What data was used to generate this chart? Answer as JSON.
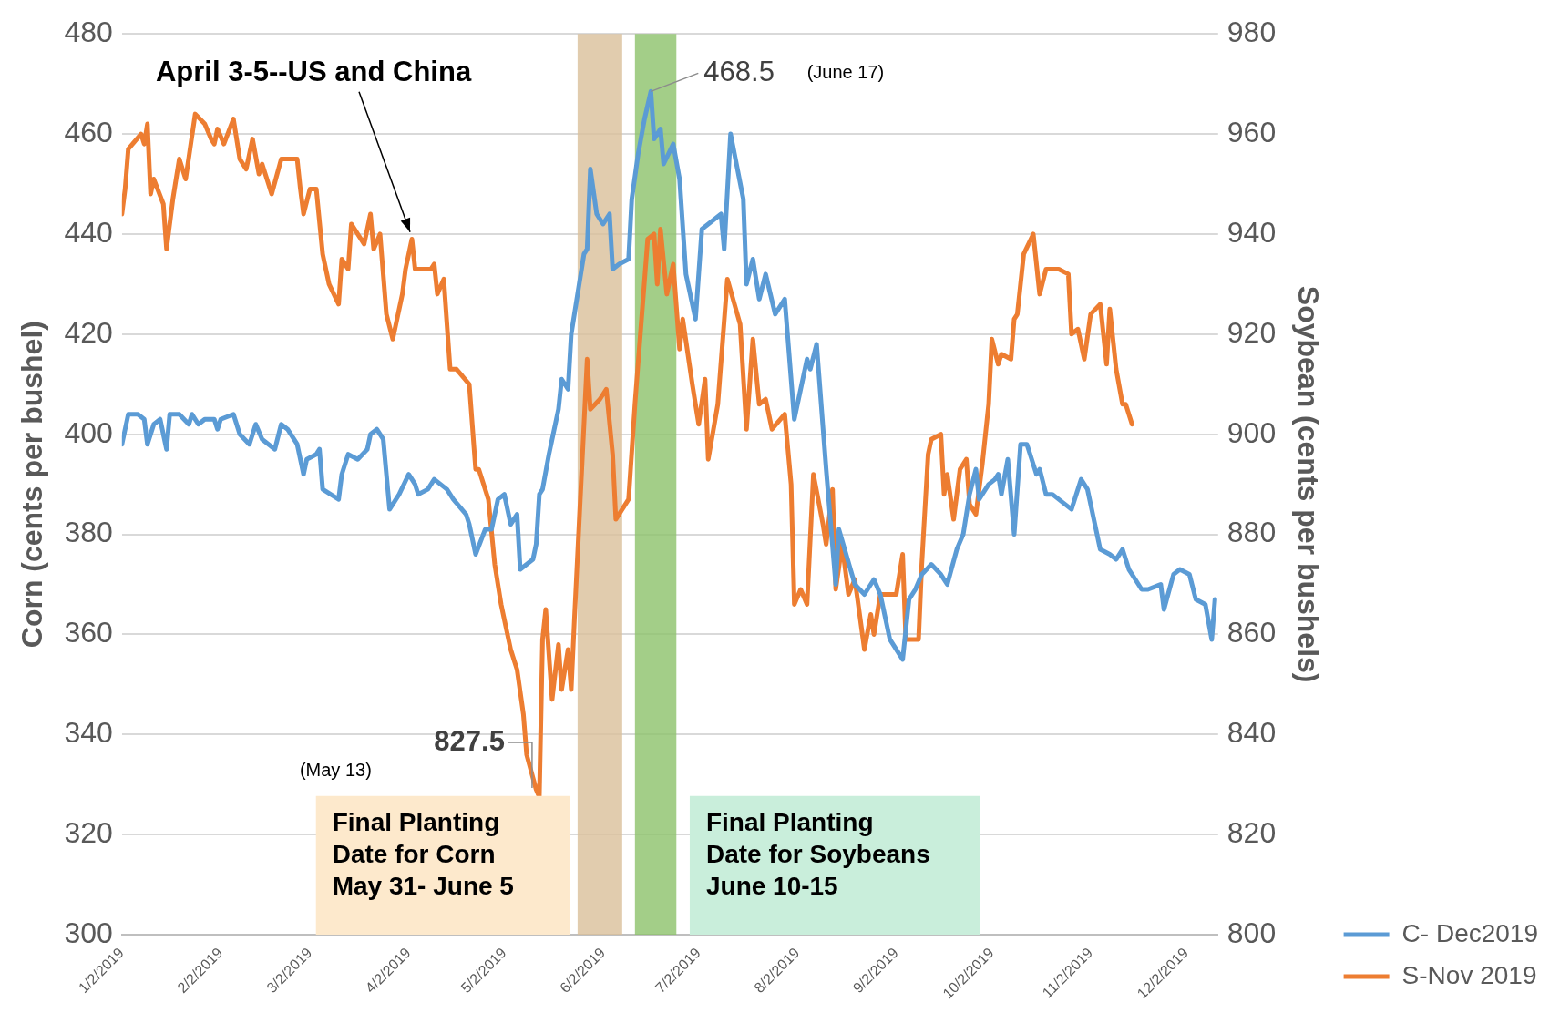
{
  "chart_data": {
    "type": "line",
    "ylabel": "Corn (cents per bushel)",
    "y2label": "Soybean (cents per bushels)",
    "xlim": [
      "2019-01-02",
      "2019-12-12"
    ],
    "xticks": [
      {
        "value": "2019-01-02",
        "label": "1/2/2019"
      },
      {
        "value": "2019-02-02",
        "label": "2/2/2019"
      },
      {
        "value": "2019-03-02",
        "label": "3/2/2019"
      },
      {
        "value": "2019-04-02",
        "label": "4/2/2019"
      },
      {
        "value": "2019-05-02",
        "label": "5/2/2019"
      },
      {
        "value": "2019-06-02",
        "label": "6/2/2019"
      },
      {
        "value": "2019-07-02",
        "label": "7/2/2019"
      },
      {
        "value": "2019-08-02",
        "label": "8/2/2019"
      },
      {
        "value": "2019-09-02",
        "label": "9/2/2019"
      },
      {
        "value": "2019-10-02",
        "label": "10/2/2019"
      },
      {
        "value": "2019-11-02",
        "label": "11/2/2019"
      },
      {
        "value": "2019-12-02",
        "label": "12/2/2019"
      }
    ],
    "ylim": [
      300,
      480
    ],
    "yticks": [
      300,
      320,
      340,
      360,
      380,
      400,
      420,
      440,
      460,
      480
    ],
    "y2lim": [
      800,
      980
    ],
    "y2ticks": [
      800,
      820,
      840,
      860,
      880,
      900,
      920,
      940,
      960,
      980
    ],
    "grid": "y",
    "legend": "right",
    "marker": "none",
    "line_style": "solid",
    "series": [
      {
        "name": "C- Dec2019",
        "color": "#5b9bd5",
        "x": [
          "2019-01-02",
          "2019-01-04",
          "2019-01-07",
          "2019-01-09",
          "2019-01-10",
          "2019-01-12",
          "2019-01-14",
          "2019-01-16",
          "2019-01-17",
          "2019-01-20",
          "2019-01-23",
          "2019-01-24",
          "2019-01-26",
          "2019-01-28",
          "2019-01-31",
          "2019-02-01",
          "2019-02-02",
          "2019-02-06",
          "2019-02-08",
          "2019-02-11",
          "2019-02-13",
          "2019-02-15",
          "2019-02-19",
          "2019-02-21",
          "2019-02-23",
          "2019-02-26",
          "2019-02-28",
          "2019-03-01",
          "2019-03-04",
          "2019-03-05",
          "2019-03-06",
          "2019-03-11",
          "2019-03-12",
          "2019-03-14",
          "2019-03-17",
          "2019-03-20",
          "2019-03-21",
          "2019-03-23",
          "2019-03-25",
          "2019-03-27",
          "2019-03-30",
          "2019-04-02",
          "2019-04-04",
          "2019-04-05",
          "2019-04-08",
          "2019-04-10",
          "2019-04-12",
          "2019-04-14",
          "2019-04-16",
          "2019-04-20",
          "2019-04-21",
          "2019-04-23",
          "2019-04-26",
          "2019-04-28",
          "2019-04-30",
          "2019-05-02",
          "2019-05-04",
          "2019-05-06",
          "2019-05-07",
          "2019-05-11",
          "2019-05-12",
          "2019-05-13",
          "2019-05-14",
          "2019-05-16",
          "2019-05-19",
          "2019-05-20",
          "2019-05-22",
          "2019-05-23",
          "2019-05-27",
          "2019-05-28",
          "2019-05-29",
          "2019-05-31",
          "2019-06-02",
          "2019-06-04",
          "2019-06-05",
          "2019-06-07",
          "2019-06-10",
          "2019-06-11",
          "2019-06-13",
          "2019-06-15",
          "2019-06-17",
          "2019-06-18",
          "2019-06-20",
          "2019-06-21",
          "2019-06-24",
          "2019-06-26",
          "2019-06-28",
          "2019-07-01",
          "2019-07-03",
          "2019-07-09",
          "2019-07-10",
          "2019-07-12",
          "2019-07-16",
          "2019-07-17",
          "2019-07-19",
          "2019-07-21",
          "2019-07-23",
          "2019-07-26",
          "2019-07-29",
          "2019-08-01",
          "2019-08-05",
          "2019-08-06",
          "2019-08-08",
          "2019-08-11",
          "2019-08-14",
          "2019-08-15",
          "2019-08-20",
          "2019-08-23",
          "2019-08-26",
          "2019-08-28",
          "2019-08-31",
          "2019-09-04",
          "2019-09-06",
          "2019-09-08",
          "2019-09-10",
          "2019-09-13",
          "2019-09-16",
          "2019-09-18",
          "2019-09-21",
          "2019-09-23",
          "2019-09-25",
          "2019-09-27",
          "2019-09-28",
          "2019-10-01",
          "2019-10-03",
          "2019-10-04",
          "2019-10-05",
          "2019-10-07",
          "2019-10-09",
          "2019-10-11",
          "2019-10-13",
          "2019-10-16",
          "2019-10-17",
          "2019-10-19",
          "2019-10-21",
          "2019-10-25",
          "2019-10-27",
          "2019-10-30",
          "2019-11-01",
          "2019-11-05",
          "2019-11-08",
          "2019-11-10",
          "2019-11-12",
          "2019-11-14",
          "2019-11-16",
          "2019-11-18",
          "2019-11-20",
          "2019-11-24",
          "2019-11-25",
          "2019-11-28",
          "2019-11-30",
          "2019-12-03",
          "2019-12-05",
          "2019-12-08",
          "2019-12-10",
          "2019-12-11"
        ],
        "values": [
          398,
          404,
          404,
          403,
          398,
          402,
          403,
          397,
          404,
          404,
          402,
          404,
          402,
          403,
          403,
          401,
          403,
          404,
          400,
          398,
          402,
          399,
          397,
          402,
          401,
          398,
          392,
          395,
          396,
          397,
          389,
          387,
          392,
          396,
          395,
          397,
          400,
          401,
          399,
          385,
          388,
          392,
          390,
          388,
          389,
          391,
          390,
          389,
          387,
          384,
          382,
          376,
          381,
          381,
          387,
          388,
          382,
          384,
          373,
          375,
          378,
          388,
          389,
          396,
          405,
          411,
          409,
          420,
          436,
          437,
          453,
          444,
          442,
          444,
          433,
          434,
          435,
          447,
          456,
          463,
          468.5,
          459,
          461,
          454,
          458,
          451,
          432,
          423,
          441,
          444,
          437,
          460,
          447,
          430,
          435,
          427,
          432,
          424,
          427,
          403,
          415,
          413,
          418,
          393,
          370,
          381,
          370,
          368,
          371,
          368,
          359,
          355,
          367,
          369,
          372,
          374,
          372,
          370,
          377,
          380,
          388,
          393,
          387,
          390,
          391,
          392,
          388,
          395,
          380,
          398,
          398,
          392,
          393,
          388,
          388,
          386,
          385,
          391,
          389,
          377,
          376,
          375,
          377,
          373,
          371,
          369,
          369,
          370,
          365,
          372,
          373,
          372,
          367,
          366,
          359,
          367
        ]
      },
      {
        "name": "S-Nov 2019",
        "color": "#ed7d31",
        "axis": "y2",
        "x": [
          "2019-01-02",
          "2019-01-03",
          "2019-01-04",
          "2019-01-08",
          "2019-01-09",
          "2019-01-10",
          "2019-01-11",
          "2019-01-12",
          "2019-01-15",
          "2019-01-16",
          "2019-01-18",
          "2019-01-20",
          "2019-01-22",
          "2019-01-25",
          "2019-01-28",
          "2019-01-30",
          "2019-01-31",
          "2019-02-01",
          "2019-02-03",
          "2019-02-06",
          "2019-02-08",
          "2019-02-10",
          "2019-02-12",
          "2019-02-14",
          "2019-02-15",
          "2019-02-18",
          "2019-02-21",
          "2019-02-26",
          "2019-02-27",
          "2019-02-28",
          "2019-03-02",
          "2019-03-04",
          "2019-03-06",
          "2019-03-08",
          "2019-03-11",
          "2019-03-12",
          "2019-03-14",
          "2019-03-15",
          "2019-03-19",
          "2019-03-21",
          "2019-03-22",
          "2019-03-24",
          "2019-03-26",
          "2019-03-28",
          "2019-03-31",
          "2019-04-01",
          "2019-04-03",
          "2019-04-04",
          "2019-04-09",
          "2019-04-10",
          "2019-04-11",
          "2019-04-13",
          "2019-04-15",
          "2019-04-17",
          "2019-04-21",
          "2019-04-23",
          "2019-04-24",
          "2019-04-27",
          "2019-04-29",
          "2019-05-01",
          "2019-05-04",
          "2019-05-06",
          "2019-05-08",
          "2019-05-09",
          "2019-05-12",
          "2019-05-13",
          "2019-05-14",
          "2019-05-15",
          "2019-05-17",
          "2019-05-19",
          "2019-05-20",
          "2019-05-22",
          "2019-05-23",
          "2019-05-24",
          "2019-05-28",
          "2019-05-29",
          "2019-06-01",
          "2019-06-03",
          "2019-06-05",
          "2019-06-06",
          "2019-06-10",
          "2019-06-12",
          "2019-06-16",
          "2019-06-18",
          "2019-06-19",
          "2019-06-20",
          "2019-06-22",
          "2019-06-24",
          "2019-06-26",
          "2019-06-27",
          "2019-06-30",
          "2019-07-02",
          "2019-07-04",
          "2019-07-05",
          "2019-07-08",
          "2019-07-11",
          "2019-07-15",
          "2019-07-17",
          "2019-07-19",
          "2019-07-21",
          "2019-07-23",
          "2019-07-25",
          "2019-07-29",
          "2019-07-31",
          "2019-08-01",
          "2019-08-03",
          "2019-08-05",
          "2019-08-07",
          "2019-08-10",
          "2019-08-11",
          "2019-08-13",
          "2019-08-14",
          "2019-08-16",
          "2019-08-18",
          "2019-08-20",
          "2019-08-23",
          "2019-08-25",
          "2019-08-26",
          "2019-08-28",
          "2019-09-02",
          "2019-09-04",
          "2019-09-05",
          "2019-09-09",
          "2019-09-10",
          "2019-09-12",
          "2019-09-13",
          "2019-09-16",
          "2019-09-17",
          "2019-09-18",
          "2019-09-20",
          "2019-09-22",
          "2019-09-24",
          "2019-09-25",
          "2019-09-27",
          "2019-09-29",
          "2019-10-01",
          "2019-10-02",
          "2019-10-04",
          "2019-10-05",
          "2019-10-08",
          "2019-10-09",
          "2019-10-10",
          "2019-10-12",
          "2019-10-15",
          "2019-10-17",
          "2019-10-19",
          "2019-10-22",
          "2019-10-23",
          "2019-10-26",
          "2019-10-27",
          "2019-10-29",
          "2019-10-31",
          "2019-11-02",
          "2019-11-05",
          "2019-11-07",
          "2019-11-08",
          "2019-11-10",
          "2019-11-12",
          "2019-11-13",
          "2019-11-15"
        ],
        "values": [
          944,
          949,
          957,
          960,
          958,
          962,
          948,
          951,
          946,
          937,
          947,
          955,
          951,
          964,
          962,
          959,
          958,
          961,
          958,
          963,
          955,
          953,
          959,
          952,
          954,
          948,
          955,
          955,
          949,
          944,
          949,
          949,
          936,
          930,
          926,
          935,
          933,
          942,
          938,
          944,
          937,
          940,
          924,
          919,
          928,
          933,
          939,
          933,
          933,
          934,
          928,
          931,
          913,
          913,
          910,
          893,
          893,
          887,
          874,
          866,
          857,
          853,
          844,
          836,
          829,
          827.5,
          859,
          865,
          847,
          858,
          849,
          857,
          849,
          863,
          915,
          905,
          907,
          909,
          896,
          883,
          887,
          906,
          939,
          940,
          930,
          941,
          928,
          934,
          917,
          923,
          910,
          902,
          911,
          895,
          906,
          931,
          922,
          901,
          919,
          906,
          907,
          901,
          904,
          890,
          866,
          869,
          866,
          892,
          882,
          878,
          889,
          869,
          878,
          868,
          871,
          857,
          864,
          860,
          868,
          868,
          876,
          859,
          859,
          874,
          896,
          899,
          900,
          888,
          892,
          883,
          893,
          895,
          886,
          884,
          894,
          906,
          919,
          914,
          916,
          915,
          923,
          924,
          936,
          940,
          928,
          933,
          933,
          933,
          932,
          920,
          921,
          915,
          924,
          926,
          914,
          925,
          913,
          906,
          906,
          902
        ]
      }
    ],
    "bands": [
      {
        "axis": "x",
        "from": "2019-05-25",
        "to": "2019-06-08",
        "color": "#d9bf9a"
      },
      {
        "axis": "x",
        "from": "2019-06-12",
        "to": "2019-06-25",
        "color": "#8cc26a"
      }
    ],
    "annotations": [
      {
        "text": "April 3-5--US and China",
        "x": "2019-04-03",
        "y": 439.3
      },
      {
        "text": "468.5",
        "x": "2019-06-17",
        "y": 468.5
      },
      "(June 17)",
      {
        "text": "827.5",
        "x": "2019-05-13",
        "y": 327.5
      },
      "(May 13)",
      "Final Planting\nDate for Corn\nMay 31- June 5",
      "Final Planting\nDate for Soybeans\nJune 10-15"
    ]
  }
}
